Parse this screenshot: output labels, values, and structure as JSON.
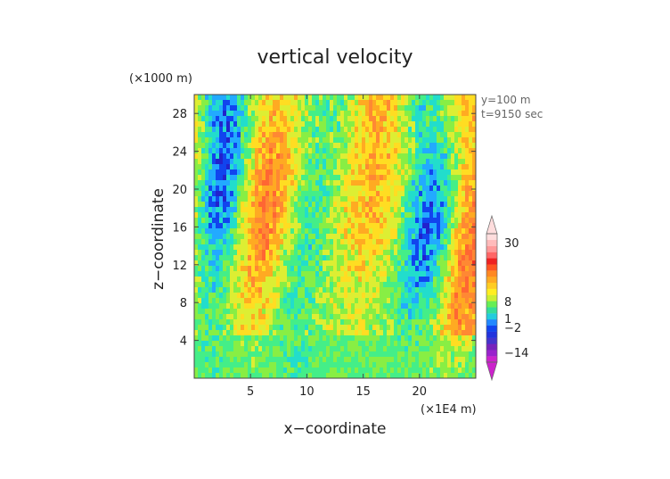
{
  "chart_data": {
    "type": "heatmap",
    "title": "vertical velocity",
    "xlabel": "x−coordinate",
    "ylabel": "z−coordinate",
    "x_unit": "(×1E4 m)",
    "y_unit": "(×1000 m)",
    "annotations": [
      "y=100 m",
      "t=9150 sec"
    ],
    "xlim": [
      0,
      25
    ],
    "ylim": [
      0,
      30
    ],
    "x_ticks": [
      5,
      10,
      15,
      20
    ],
    "x_tick_labels": [
      "5",
      "10",
      "15",
      "20"
    ],
    "y_ticks": [
      4,
      8,
      12,
      16,
      20,
      24,
      28
    ],
    "y_tick_labels": [
      "4",
      "8",
      "12",
      "16",
      "20",
      "24",
      "28"
    ],
    "colorbar": {
      "labels": [
        {
          "text": "30",
          "value": 30
        },
        {
          "text": "8",
          "value": 8
        },
        {
          "text": "1",
          "value": 1
        },
        {
          "text": "−2",
          "value": -2
        },
        {
          "text": "−14",
          "value": -14
        }
      ],
      "bands": [
        {
          "color": "#cc22cc"
        },
        {
          "color": "#9922cc"
        },
        {
          "color": "#7722bb"
        },
        {
          "color": "#4433cc"
        },
        {
          "color": "#2233dd"
        },
        {
          "color": "#1144ee"
        },
        {
          "color": "#2288ff"
        },
        {
          "color": "#22ccdd"
        },
        {
          "color": "#33dd99"
        },
        {
          "color": "#66ee55"
        },
        {
          "color": "#ccee33"
        },
        {
          "color": "#ffee22"
        },
        {
          "color": "#ffcc22"
        },
        {
          "color": "#ffaa22"
        },
        {
          "color": "#ff8822"
        },
        {
          "color": "#ff5522"
        },
        {
          "color": "#ee2222"
        },
        {
          "color": "#ff6666"
        },
        {
          "color": "#ff9999"
        },
        {
          "color": "#ffbbbb"
        },
        {
          "color": "#ffdddd"
        }
      ],
      "under_color": "#cc22cc",
      "over_color": "#ffdddd"
    },
    "field_palette": [
      "#2222cc",
      "#1144ee",
      "#22aaff",
      "#22ddcc",
      "#44ee88",
      "#88ee44",
      "#ddee33",
      "#ffdd22",
      "#ffaa22",
      "#ff8833",
      "#ff6633",
      "#ee3322",
      "#aa22cc"
    ]
  }
}
